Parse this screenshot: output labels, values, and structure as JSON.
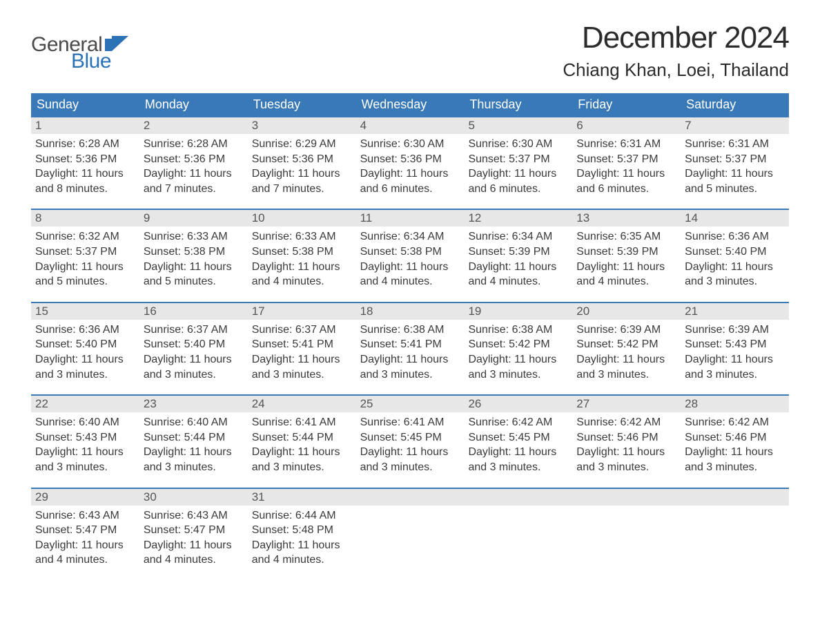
{
  "brand": {
    "word1": "General",
    "word2": "Blue",
    "text_color": "#4a4a4a",
    "accent_color": "#2a72b5"
  },
  "title": "December 2024",
  "location": "Chiang Khan, Loei, Thailand",
  "colors": {
    "header_bg": "#3a79b7",
    "header_text": "#ffffff",
    "row_border": "#3a79b7",
    "daynum_bg": "#e7e7e7",
    "body_text": "#3a3a3a",
    "page_bg": "#ffffff"
  },
  "typography": {
    "title_fontsize": 44,
    "location_fontsize": 26,
    "dayheader_fontsize": 18,
    "daynum_fontsize": 17,
    "body_fontsize": 16,
    "font_family": "Arial"
  },
  "layout": {
    "columns": 7,
    "rows": 5,
    "cell_min_height": 118
  },
  "day_names": [
    "Sunday",
    "Monday",
    "Tuesday",
    "Wednesday",
    "Thursday",
    "Friday",
    "Saturday"
  ],
  "weeks": [
    [
      {
        "n": "1",
        "sunrise": "Sunrise: 6:28 AM",
        "sunset": "Sunset: 5:36 PM",
        "d1": "Daylight: 11 hours",
        "d2": "and 8 minutes."
      },
      {
        "n": "2",
        "sunrise": "Sunrise: 6:28 AM",
        "sunset": "Sunset: 5:36 PM",
        "d1": "Daylight: 11 hours",
        "d2": "and 7 minutes."
      },
      {
        "n": "3",
        "sunrise": "Sunrise: 6:29 AM",
        "sunset": "Sunset: 5:36 PM",
        "d1": "Daylight: 11 hours",
        "d2": "and 7 minutes."
      },
      {
        "n": "4",
        "sunrise": "Sunrise: 6:30 AM",
        "sunset": "Sunset: 5:36 PM",
        "d1": "Daylight: 11 hours",
        "d2": "and 6 minutes."
      },
      {
        "n": "5",
        "sunrise": "Sunrise: 6:30 AM",
        "sunset": "Sunset: 5:37 PM",
        "d1": "Daylight: 11 hours",
        "d2": "and 6 minutes."
      },
      {
        "n": "6",
        "sunrise": "Sunrise: 6:31 AM",
        "sunset": "Sunset: 5:37 PM",
        "d1": "Daylight: 11 hours",
        "d2": "and 6 minutes."
      },
      {
        "n": "7",
        "sunrise": "Sunrise: 6:31 AM",
        "sunset": "Sunset: 5:37 PM",
        "d1": "Daylight: 11 hours",
        "d2": "and 5 minutes."
      }
    ],
    [
      {
        "n": "8",
        "sunrise": "Sunrise: 6:32 AM",
        "sunset": "Sunset: 5:37 PM",
        "d1": "Daylight: 11 hours",
        "d2": "and 5 minutes."
      },
      {
        "n": "9",
        "sunrise": "Sunrise: 6:33 AM",
        "sunset": "Sunset: 5:38 PM",
        "d1": "Daylight: 11 hours",
        "d2": "and 5 minutes."
      },
      {
        "n": "10",
        "sunrise": "Sunrise: 6:33 AM",
        "sunset": "Sunset: 5:38 PM",
        "d1": "Daylight: 11 hours",
        "d2": "and 4 minutes."
      },
      {
        "n": "11",
        "sunrise": "Sunrise: 6:34 AM",
        "sunset": "Sunset: 5:38 PM",
        "d1": "Daylight: 11 hours",
        "d2": "and 4 minutes."
      },
      {
        "n": "12",
        "sunrise": "Sunrise: 6:34 AM",
        "sunset": "Sunset: 5:39 PM",
        "d1": "Daylight: 11 hours",
        "d2": "and 4 minutes."
      },
      {
        "n": "13",
        "sunrise": "Sunrise: 6:35 AM",
        "sunset": "Sunset: 5:39 PM",
        "d1": "Daylight: 11 hours",
        "d2": "and 4 minutes."
      },
      {
        "n": "14",
        "sunrise": "Sunrise: 6:36 AM",
        "sunset": "Sunset: 5:40 PM",
        "d1": "Daylight: 11 hours",
        "d2": "and 3 minutes."
      }
    ],
    [
      {
        "n": "15",
        "sunrise": "Sunrise: 6:36 AM",
        "sunset": "Sunset: 5:40 PM",
        "d1": "Daylight: 11 hours",
        "d2": "and 3 minutes."
      },
      {
        "n": "16",
        "sunrise": "Sunrise: 6:37 AM",
        "sunset": "Sunset: 5:40 PM",
        "d1": "Daylight: 11 hours",
        "d2": "and 3 minutes."
      },
      {
        "n": "17",
        "sunrise": "Sunrise: 6:37 AM",
        "sunset": "Sunset: 5:41 PM",
        "d1": "Daylight: 11 hours",
        "d2": "and 3 minutes."
      },
      {
        "n": "18",
        "sunrise": "Sunrise: 6:38 AM",
        "sunset": "Sunset: 5:41 PM",
        "d1": "Daylight: 11 hours",
        "d2": "and 3 minutes."
      },
      {
        "n": "19",
        "sunrise": "Sunrise: 6:38 AM",
        "sunset": "Sunset: 5:42 PM",
        "d1": "Daylight: 11 hours",
        "d2": "and 3 minutes."
      },
      {
        "n": "20",
        "sunrise": "Sunrise: 6:39 AM",
        "sunset": "Sunset: 5:42 PM",
        "d1": "Daylight: 11 hours",
        "d2": "and 3 minutes."
      },
      {
        "n": "21",
        "sunrise": "Sunrise: 6:39 AM",
        "sunset": "Sunset: 5:43 PM",
        "d1": "Daylight: 11 hours",
        "d2": "and 3 minutes."
      }
    ],
    [
      {
        "n": "22",
        "sunrise": "Sunrise: 6:40 AM",
        "sunset": "Sunset: 5:43 PM",
        "d1": "Daylight: 11 hours",
        "d2": "and 3 minutes."
      },
      {
        "n": "23",
        "sunrise": "Sunrise: 6:40 AM",
        "sunset": "Sunset: 5:44 PM",
        "d1": "Daylight: 11 hours",
        "d2": "and 3 minutes."
      },
      {
        "n": "24",
        "sunrise": "Sunrise: 6:41 AM",
        "sunset": "Sunset: 5:44 PM",
        "d1": "Daylight: 11 hours",
        "d2": "and 3 minutes."
      },
      {
        "n": "25",
        "sunrise": "Sunrise: 6:41 AM",
        "sunset": "Sunset: 5:45 PM",
        "d1": "Daylight: 11 hours",
        "d2": "and 3 minutes."
      },
      {
        "n": "26",
        "sunrise": "Sunrise: 6:42 AM",
        "sunset": "Sunset: 5:45 PM",
        "d1": "Daylight: 11 hours",
        "d2": "and 3 minutes."
      },
      {
        "n": "27",
        "sunrise": "Sunrise: 6:42 AM",
        "sunset": "Sunset: 5:46 PM",
        "d1": "Daylight: 11 hours",
        "d2": "and 3 minutes."
      },
      {
        "n": "28",
        "sunrise": "Sunrise: 6:42 AM",
        "sunset": "Sunset: 5:46 PM",
        "d1": "Daylight: 11 hours",
        "d2": "and 3 minutes."
      }
    ],
    [
      {
        "n": "29",
        "sunrise": "Sunrise: 6:43 AM",
        "sunset": "Sunset: 5:47 PM",
        "d1": "Daylight: 11 hours",
        "d2": "and 4 minutes."
      },
      {
        "n": "30",
        "sunrise": "Sunrise: 6:43 AM",
        "sunset": "Sunset: 5:47 PM",
        "d1": "Daylight: 11 hours",
        "d2": "and 4 minutes."
      },
      {
        "n": "31",
        "sunrise": "Sunrise: 6:44 AM",
        "sunset": "Sunset: 5:48 PM",
        "d1": "Daylight: 11 hours",
        "d2": "and 4 minutes."
      },
      null,
      null,
      null,
      null
    ]
  ]
}
